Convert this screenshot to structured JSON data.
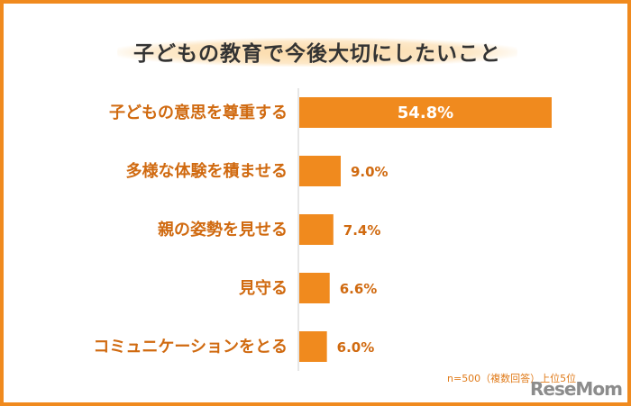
{
  "title": "子どもの教育で今後大切にしたいこと",
  "note": "n=500（複数回答）上位5位",
  "brand": "ReseMom",
  "colors": {
    "bar": "#f08a1e",
    "label": "#d06a10",
    "frame": "#f08a1e"
  },
  "chart_data": {
    "type": "bar",
    "orientation": "horizontal",
    "categories": [
      "子どもの意思を尊重する",
      "多様な体験を積ませる",
      "親の姿勢を見せる",
      "見守る",
      "コミュニケーションをとる"
    ],
    "values": [
      54.8,
      9.0,
      7.4,
      6.6,
      6.0
    ],
    "value_labels": [
      "54.8%",
      "9.0%",
      "7.4%",
      "6.6%",
      "6.0%"
    ],
    "unit": "%",
    "xlim": [
      0,
      60
    ],
    "grid": false
  }
}
